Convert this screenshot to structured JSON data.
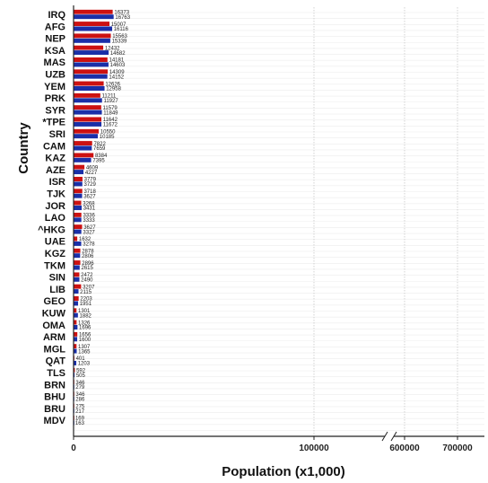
{
  "chart_data": {
    "type": "bar",
    "orientation": "horizontal",
    "xlabel": "Population (x1,000)",
    "ylabel": "Country",
    "x_axis_break": true,
    "x_ticks": [
      "0",
      "100000",
      "600000",
      "700000"
    ],
    "grid": true,
    "colors": [
      "#cc1111",
      "#1a2fa8"
    ],
    "categories": [
      "IRQ",
      "AFG",
      "NEP",
      "KSA",
      "MAS",
      "UZB",
      "YEM",
      "PRK",
      "SYR",
      "*TPE",
      "SRI",
      "CAM",
      "KAZ",
      "AZE",
      "ISR",
      "TJK",
      "JOR",
      "LAO",
      "^HKG",
      "UAE",
      "KGZ",
      "TKM",
      "SIN",
      "LIB",
      "GEO",
      "KUW",
      "OMA",
      "ARM",
      "MGL",
      "QAT",
      "TLS",
      "BRN",
      "BHU",
      "BRU",
      "MDV"
    ],
    "series": [
      {
        "values": [
          16373,
          15007,
          15563,
          12432,
          14181,
          14309,
          12626,
          11211,
          11579,
          11642,
          10550,
          7822,
          8384,
          4609,
          3779,
          3718,
          3268,
          3336,
          3627,
          1632,
          2878,
          2896,
          2472,
          3207,
          2203,
          1301,
          1326,
          1656,
          1307,
          401,
          592,
          346,
          346,
          275,
          169
        ]
      },
      {
        "values": [
          16763,
          16116,
          15339,
          14682,
          14603,
          14152,
          12958,
          11927,
          11849,
          11672,
          10185,
          7659,
          7395,
          4227,
          3729,
          3627,
          3431,
          3333,
          3327,
          3278,
          2806,
          2615,
          2490,
          2115,
          1951,
          1882,
          1696,
          1600,
          1365,
          1203,
          505,
          279,
          286,
          217,
          163
        ]
      }
    ]
  }
}
